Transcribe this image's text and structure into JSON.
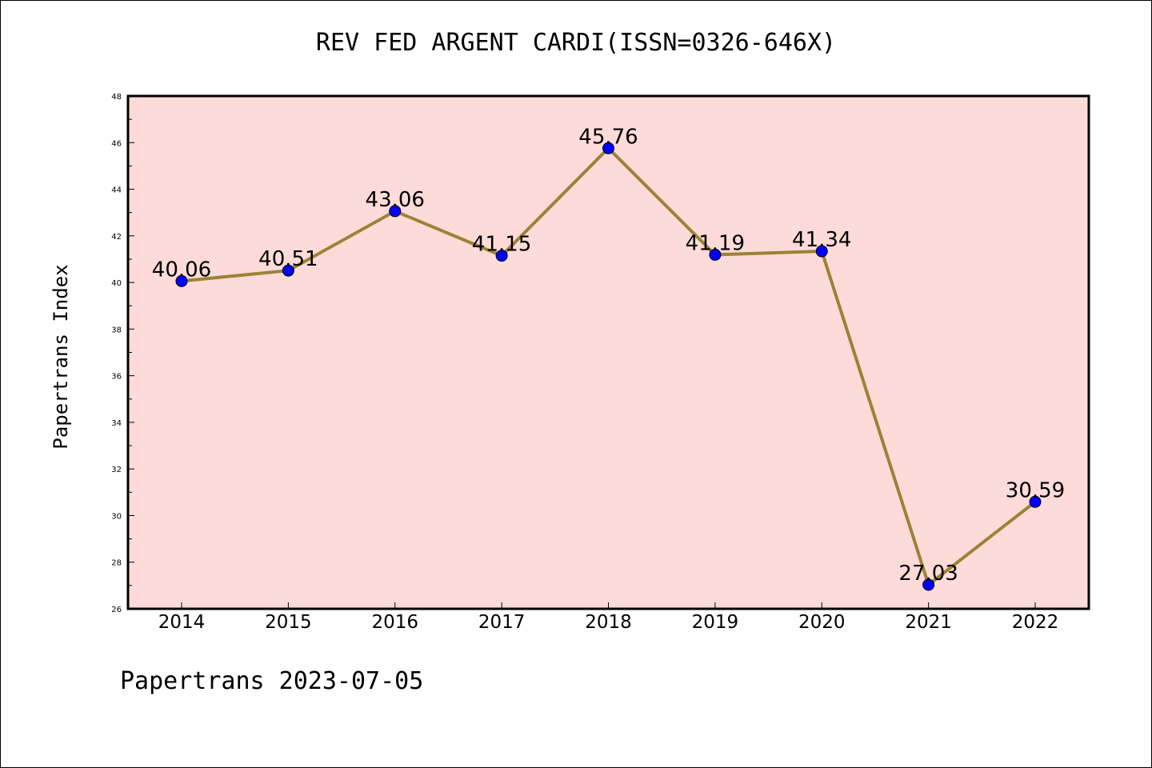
{
  "chart_data": {
    "type": "line",
    "title": "REV FED ARGENT CARDI(ISSN=0326-646X)",
    "ylabel": "Papertrans Index",
    "xlabel": "",
    "categories": [
      "2014",
      "2015",
      "2016",
      "2017",
      "2018",
      "2019",
      "2020",
      "2021",
      "2022"
    ],
    "series": [
      {
        "values": [
          40.06,
          40.51,
          43.06,
          41.15,
          45.76,
          41.19,
          41.34,
          27.03,
          30.59
        ],
        "data_labels": [
          "40.06",
          "40.51",
          "43.06",
          "41.15",
          "45.76",
          "41.19",
          "41.34",
          "27.03",
          "30.59"
        ]
      }
    ],
    "ylim": [
      26,
      48
    ],
    "yticks": [
      "26",
      "28",
      "30",
      "32",
      "34",
      "36",
      "38",
      "40",
      "42",
      "44",
      "46",
      "48"
    ],
    "grid": false,
    "colors": {
      "plot_background": "#fddbd8",
      "line": "#9a8338",
      "marker": "#0000ff"
    }
  },
  "footer": "Papertrans 2023-07-05"
}
